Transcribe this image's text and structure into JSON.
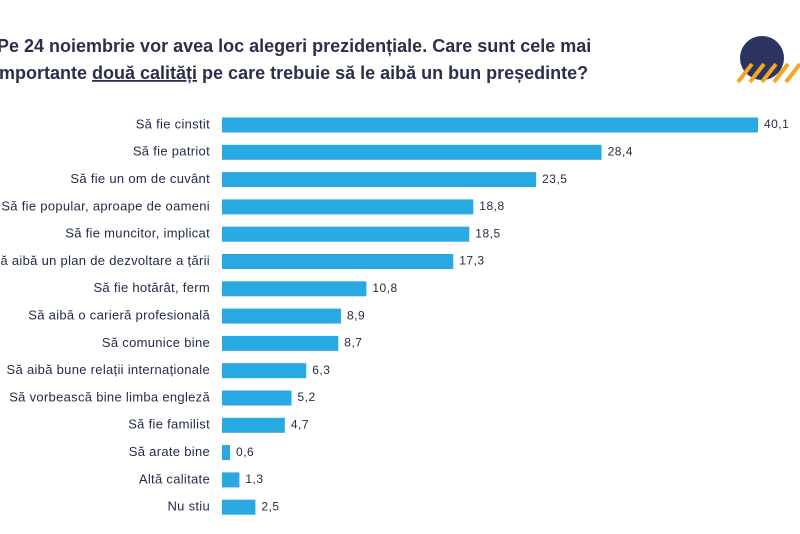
{
  "chart_data": {
    "type": "bar",
    "orientation": "horizontal",
    "title": {
      "line1": "Pe 24 noiembrie vor avea loc alegeri prezidențiale. Care sunt cele mai",
      "line2_start": "Importante ",
      "line2_underlined": "două calități",
      "line2_end": " pe care trebuie să le aibă un bun președinte?"
    },
    "categories": [
      "Să fie cinstit",
      "Să fie patriot",
      "Să fie un om de cuvânt",
      "Să fie popular, aproape de oameni",
      "Să fie muncitor, implicat",
      "Să aibă un plan de dezvoltare a țării",
      "Să fie hotărât, ferm",
      "Să aibă o carieră profesională",
      "Să comunice bine",
      "Să aibă bune relații internaționale",
      "Să vorbească bine limba engleză",
      "Să fie familist",
      "Să arate bine",
      "Altă calitate",
      "Nu stiu"
    ],
    "values": [
      40.1,
      28.4,
      23.5,
      18.8,
      18.5,
      17.3,
      10.8,
      8.9,
      8.7,
      6.3,
      5.2,
      4.7,
      0.6,
      1.3,
      2.5
    ],
    "value_labels": [
      "40,1",
      "28,4",
      "23,5",
      "18,8",
      "18,5",
      "17,3",
      "10,8",
      "8,9",
      "8,7",
      "6,3",
      "5,2",
      "4,7",
      "0,6",
      "1,3",
      "2,5"
    ],
    "color": "#29a9e1"
  }
}
